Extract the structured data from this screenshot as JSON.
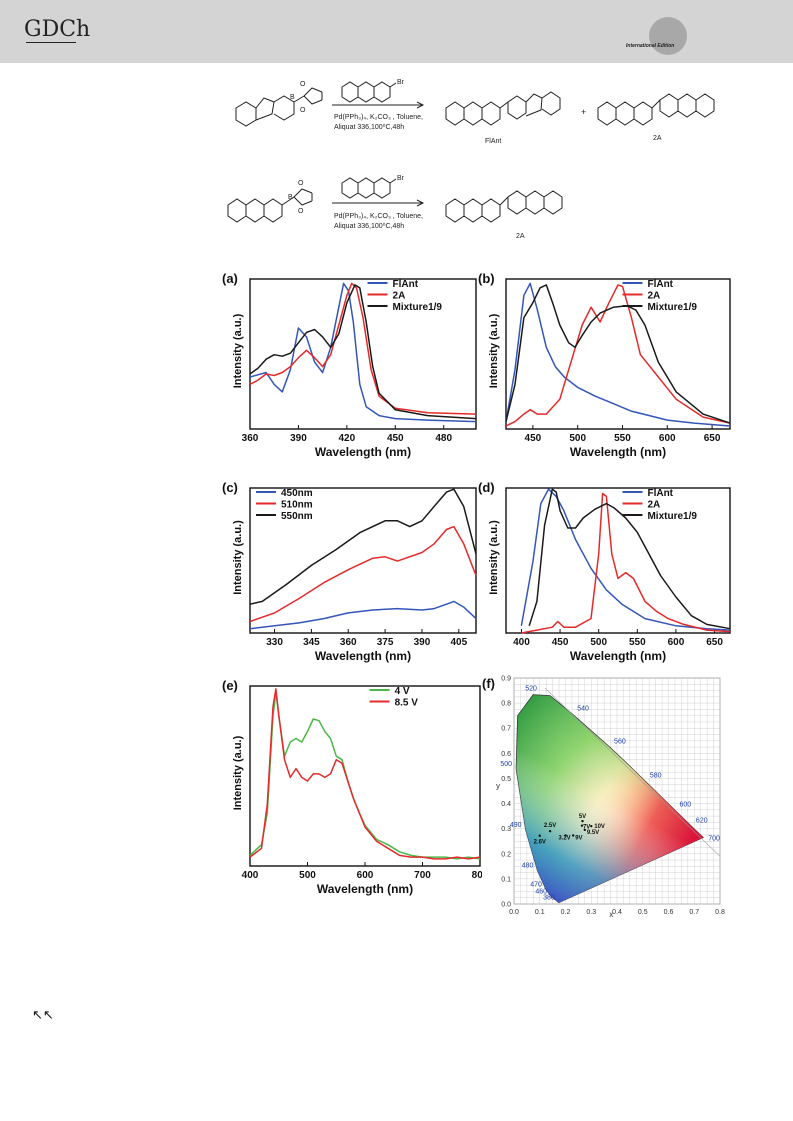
{
  "header": {
    "logo": "GDCh",
    "edition": "International Edition"
  },
  "footer": {
    "arrows": "↖↖"
  },
  "scheme": {
    "row1": {
      "reagent": "Br",
      "conditions1": "Pd(PPh₃)₄, K₂CO₃ , Toluene,",
      "conditions2": "Aliquat 336,100⁰C,48h",
      "plus": "+",
      "product1": "FlAnt",
      "product2": "2A",
      "atoms": [
        "O",
        "B",
        "O"
      ]
    },
    "row2": {
      "reagent": "Br",
      "conditions1": "Pd(PPh₃)₄, K₂CO₃ , Toluene,",
      "conditions2": "Aliquat 336,100⁰C,48h",
      "product": "2A",
      "atoms": [
        "O",
        "B",
        "O"
      ]
    }
  },
  "colors": {
    "blue": "#3356b8",
    "red": "#e42a2a",
    "black": "#1a1a1a",
    "green": "#4cb648"
  },
  "chart_data": [
    {
      "panel": "(a)",
      "type": "line",
      "xlabel": "Wavelength (nm)",
      "ylabel": "Intensity (a.u.)",
      "xlim": [
        360,
        500
      ],
      "ylim": [
        0,
        1.05
      ],
      "xticks": [
        "360",
        "390",
        "420",
        "450",
        "480"
      ],
      "xtick_values": [
        360,
        390,
        420,
        450,
        480
      ],
      "legend_position": "top-right",
      "series": [
        {
          "name": "FlAnt",
          "color": "#3356b8",
          "x": [
            360,
            370,
            375,
            380,
            385,
            390,
            395,
            400,
            405,
            410,
            415,
            418,
            421,
            424,
            428,
            432,
            440,
            450,
            470,
            500
          ],
          "y": [
            0.35,
            0.38,
            0.3,
            0.25,
            0.4,
            0.68,
            0.62,
            0.45,
            0.38,
            0.55,
            0.82,
            0.98,
            0.93,
            0.72,
            0.3,
            0.15,
            0.09,
            0.07,
            0.06,
            0.05
          ]
        },
        {
          "name": "2A",
          "color": "#e42a2a",
          "x": [
            360,
            365,
            370,
            375,
            380,
            385,
            390,
            395,
            400,
            405,
            410,
            415,
            420,
            423,
            426,
            430,
            435,
            440,
            450,
            470,
            500
          ],
          "y": [
            0.3,
            0.33,
            0.37,
            0.36,
            0.38,
            0.42,
            0.48,
            0.53,
            0.48,
            0.42,
            0.5,
            0.7,
            0.9,
            0.98,
            0.95,
            0.75,
            0.4,
            0.22,
            0.14,
            0.11,
            0.1
          ]
        },
        {
          "name": "Mixture1/9",
          "color": "#1a1a1a",
          "x": [
            360,
            365,
            370,
            375,
            380,
            385,
            390,
            395,
            400,
            405,
            410,
            415,
            420,
            425,
            428,
            432,
            436,
            440,
            450,
            470,
            500
          ],
          "y": [
            0.37,
            0.41,
            0.47,
            0.5,
            0.49,
            0.51,
            0.58,
            0.65,
            0.67,
            0.62,
            0.55,
            0.64,
            0.85,
            0.97,
            0.95,
            0.72,
            0.42,
            0.24,
            0.13,
            0.09,
            0.07
          ]
        }
      ]
    },
    {
      "panel": "(b)",
      "type": "line",
      "xlabel": "Wavelength (nm)",
      "ylabel": "Intensity (a.u.)",
      "xlim": [
        420,
        670
      ],
      "ylim": [
        0,
        1.05
      ],
      "xticks": [
        "450",
        "500",
        "550",
        "600",
        "650"
      ],
      "xtick_values": [
        450,
        500,
        550,
        600,
        650
      ],
      "legend_position": "top-right",
      "series": [
        {
          "name": "FlAnt",
          "color": "#3356b8",
          "x": [
            420,
            430,
            440,
            447,
            455,
            465,
            475,
            485,
            500,
            520,
            540,
            560,
            580,
            600,
            630,
            670
          ],
          "y": [
            0.05,
            0.4,
            0.9,
            0.98,
            0.8,
            0.55,
            0.42,
            0.35,
            0.28,
            0.22,
            0.17,
            0.12,
            0.09,
            0.06,
            0.04,
            0.02
          ]
        },
        {
          "name": "2A",
          "color": "#e42a2a",
          "x": [
            420,
            430,
            440,
            447,
            455,
            465,
            480,
            495,
            505,
            515,
            525,
            535,
            545,
            550,
            560,
            570,
            590,
            610,
            640,
            670
          ],
          "y": [
            0.02,
            0.05,
            0.1,
            0.13,
            0.1,
            0.1,
            0.2,
            0.5,
            0.7,
            0.82,
            0.72,
            0.85,
            0.97,
            0.96,
            0.75,
            0.5,
            0.35,
            0.2,
            0.08,
            0.04
          ]
        },
        {
          "name": "Mixture1/9",
          "color": "#1a1a1a",
          "x": [
            420,
            430,
            440,
            450,
            458,
            465,
            472,
            480,
            490,
            497,
            505,
            515,
            525,
            540,
            555,
            565,
            575,
            590,
            610,
            640,
            670
          ],
          "y": [
            0.05,
            0.3,
            0.75,
            0.85,
            0.95,
            0.97,
            0.85,
            0.7,
            0.58,
            0.55,
            0.63,
            0.72,
            0.78,
            0.82,
            0.83,
            0.8,
            0.7,
            0.45,
            0.25,
            0.1,
            0.04
          ]
        }
      ]
    },
    {
      "panel": "(c)",
      "type": "line",
      "xlabel": "Wavelength (nm)",
      "ylabel": "Intensity (a.u.)",
      "xlim": [
        320,
        412
      ],
      "ylim": [
        0,
        1.05
      ],
      "xticks": [
        "330",
        "345",
        "360",
        "375",
        "390",
        "405"
      ],
      "xtick_values": [
        330,
        345,
        360,
        375,
        390,
        405
      ],
      "legend_position": "top-left",
      "series": [
        {
          "name": "450nm",
          "color": "#3356b8",
          "x": [
            320,
            330,
            340,
            350,
            360,
            370,
            380,
            390,
            395,
            400,
            403,
            407,
            412
          ],
          "y": [
            0.03,
            0.05,
            0.07,
            0.1,
            0.14,
            0.16,
            0.17,
            0.16,
            0.17,
            0.2,
            0.22,
            0.18,
            0.1
          ]
        },
        {
          "name": "510nm",
          "color": "#e42a2a",
          "x": [
            320,
            330,
            340,
            350,
            360,
            370,
            375,
            380,
            390,
            395,
            400,
            403,
            407,
            412
          ],
          "y": [
            0.08,
            0.14,
            0.24,
            0.35,
            0.44,
            0.52,
            0.53,
            0.5,
            0.56,
            0.62,
            0.72,
            0.74,
            0.62,
            0.4
          ]
        },
        {
          "name": "550nm",
          "color": "#1a1a1a",
          "x": [
            320,
            325,
            335,
            345,
            355,
            365,
            375,
            380,
            385,
            390,
            395,
            400,
            403,
            407,
            412
          ],
          "y": [
            0.2,
            0.22,
            0.34,
            0.47,
            0.58,
            0.7,
            0.78,
            0.78,
            0.74,
            0.78,
            0.88,
            0.98,
            1.0,
            0.88,
            0.55
          ]
        }
      ]
    },
    {
      "panel": "(d)",
      "type": "line",
      "xlabel": "Wavelength (nm)",
      "ylabel": "Intensity (a.u.)",
      "xlim": [
        380,
        670
      ],
      "ylim": [
        0,
        1.05
      ],
      "xticks": [
        "400",
        "450",
        "500",
        "550",
        "600",
        "650"
      ],
      "xtick_values": [
        400,
        450,
        500,
        550,
        600,
        650
      ],
      "legend_position": "top-right",
      "series": [
        {
          "name": "FlAnt",
          "color": "#3356b8",
          "x": [
            400,
            415,
            425,
            435,
            445,
            455,
            470,
            490,
            510,
            530,
            560,
            600,
            640,
            670
          ],
          "y": [
            0.05,
            0.5,
            0.9,
            1.0,
            0.95,
            0.85,
            0.65,
            0.45,
            0.3,
            0.2,
            0.1,
            0.05,
            0.03,
            0.02
          ]
        },
        {
          "name": "2A",
          "color": "#e42a2a",
          "x": [
            400,
            420,
            440,
            447,
            455,
            470,
            490,
            500,
            505,
            510,
            517,
            525,
            535,
            545,
            560,
            575,
            590,
            610,
            640,
            670
          ],
          "y": [
            0.0,
            0.02,
            0.04,
            0.08,
            0.04,
            0.04,
            0.1,
            0.55,
            0.97,
            0.95,
            0.55,
            0.38,
            0.42,
            0.38,
            0.22,
            0.15,
            0.1,
            0.06,
            0.02,
            0.01
          ]
        },
        {
          "name": "Mixture1/9",
          "color": "#1a1a1a",
          "x": [
            410,
            420,
            430,
            440,
            445,
            450,
            460,
            470,
            480,
            495,
            510,
            520,
            535,
            550,
            565,
            580,
            600,
            620,
            640,
            670
          ],
          "y": [
            0.05,
            0.22,
            0.75,
            1.0,
            0.98,
            0.85,
            0.73,
            0.73,
            0.8,
            0.86,
            0.9,
            0.87,
            0.8,
            0.7,
            0.55,
            0.4,
            0.25,
            0.12,
            0.06,
            0.03
          ]
        }
      ]
    },
    {
      "panel": "(e)",
      "type": "line",
      "xlabel": "Wavelength (nm)",
      "ylabel": "Intensity (a.u.)",
      "xlim": [
        400,
        800
      ],
      "ylim": [
        0,
        1.05
      ],
      "xticks": [
        "400",
        "500",
        "600",
        "700",
        "800"
      ],
      "xtick_values": [
        400,
        500,
        600,
        700,
        800
      ],
      "legend_position": "top-right",
      "series": [
        {
          "name": "4 V",
          "color": "#4cb648",
          "x": [
            400,
            420,
            430,
            440,
            445,
            450,
            460,
            470,
            480,
            490,
            500,
            510,
            520,
            530,
            540,
            550,
            560,
            570,
            580,
            590,
            600,
            620,
            640,
            660,
            680,
            700,
            720,
            740,
            760,
            780,
            800
          ],
          "y": [
            0.06,
            0.12,
            0.3,
            0.85,
            0.98,
            0.85,
            0.62,
            0.7,
            0.72,
            0.7,
            0.76,
            0.83,
            0.82,
            0.76,
            0.72,
            0.62,
            0.6,
            0.48,
            0.38,
            0.3,
            0.23,
            0.15,
            0.12,
            0.08,
            0.06,
            0.05,
            0.05,
            0.05,
            0.04,
            0.05,
            0.04
          ]
        },
        {
          "name": "8.5 V",
          "color": "#e42a2a",
          "x": [
            400,
            420,
            430,
            440,
            445,
            450,
            460,
            470,
            480,
            490,
            500,
            510,
            520,
            530,
            540,
            550,
            560,
            570,
            580,
            590,
            600,
            620,
            640,
            660,
            680,
            700,
            720,
            740,
            760,
            780,
            800
          ],
          "y": [
            0.05,
            0.1,
            0.35,
            0.9,
            1.0,
            0.85,
            0.6,
            0.5,
            0.55,
            0.5,
            0.48,
            0.52,
            0.52,
            0.5,
            0.52,
            0.6,
            0.58,
            0.48,
            0.38,
            0.3,
            0.22,
            0.14,
            0.1,
            0.06,
            0.05,
            0.05,
            0.04,
            0.04,
            0.05,
            0.04,
            0.05
          ]
        }
      ]
    },
    {
      "panel": "(f)",
      "type": "scatter",
      "xlabel": "x",
      "ylabel": "y",
      "xlim": [
        0,
        0.8
      ],
      "ylim": [
        0,
        0.9
      ],
      "xticks": [
        "0.0",
        "0.1",
        "0.2",
        "0.3",
        "0.4",
        "0.5",
        "0.6",
        "0.7",
        "0.8"
      ],
      "xtick_values": [
        0,
        0.1,
        0.2,
        0.3,
        0.4,
        0.5,
        0.6,
        0.7,
        0.8
      ],
      "yticks": [
        "0.0",
        "0.1",
        "0.2",
        "0.3",
        "0.4",
        "0.5",
        "0.6",
        "0.7",
        "0.8",
        "0.9"
      ],
      "ytick_values": [
        0,
        0.1,
        0.2,
        0.3,
        0.4,
        0.5,
        0.6,
        0.7,
        0.8,
        0.9
      ],
      "grid": true,
      "wavelength_labels": [
        {
          "nm": "380",
          "x": 0.174,
          "y": 0.005
        },
        {
          "nm": "460",
          "x": 0.144,
          "y": 0.03
        },
        {
          "nm": "470",
          "x": 0.124,
          "y": 0.058
        },
        {
          "nm": "480",
          "x": 0.091,
          "y": 0.133
        },
        {
          "nm": "490",
          "x": 0.045,
          "y": 0.295
        },
        {
          "nm": "500",
          "x": 0.008,
          "y": 0.538
        },
        {
          "nm": "520",
          "x": 0.074,
          "y": 0.834
        },
        {
          "nm": "540",
          "x": 0.23,
          "y": 0.754
        },
        {
          "nm": "560",
          "x": 0.373,
          "y": 0.624
        },
        {
          "nm": "580",
          "x": 0.512,
          "y": 0.487
        },
        {
          "nm": "600",
          "x": 0.627,
          "y": 0.372
        },
        {
          "nm": "620",
          "x": 0.691,
          "y": 0.308
        },
        {
          "nm": "700",
          "x": 0.735,
          "y": 0.265
        }
      ],
      "points": [
        {
          "label": "2.5V",
          "x": 0.14,
          "y": 0.29
        },
        {
          "label": "2.6V",
          "x": 0.1,
          "y": 0.272
        },
        {
          "label": "3.2V",
          "x": 0.2,
          "y": 0.273
        },
        {
          "label": "5V",
          "x": 0.266,
          "y": 0.33
        },
        {
          "label": "7V",
          "x": 0.264,
          "y": 0.312
        },
        {
          "label": "9V",
          "x": 0.23,
          "y": 0.273
        },
        {
          "label": "9.5V",
          "x": 0.275,
          "y": 0.295
        },
        {
          "label": "10V",
          "x": 0.3,
          "y": 0.31
        }
      ]
    }
  ]
}
